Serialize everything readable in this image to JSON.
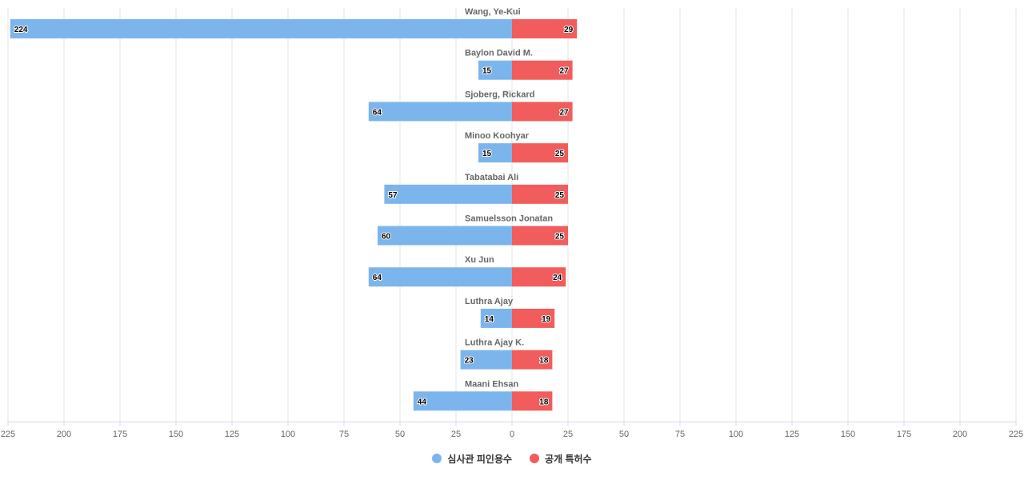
{
  "chart_data": {
    "type": "bar",
    "orientation": "horizontal-diverging",
    "categories": [
      "Wang, Ye-Kui",
      "Baylon David M.",
      "Sjoberg, Rickard",
      "Minoo Koohyar",
      "Tabatabai Ali",
      "Samuelsson Jonatan",
      "Xu Jun",
      "Luthra Ajay",
      "Luthra Ajay K.",
      "Maani Ehsan"
    ],
    "series": [
      {
        "name": "심사관 피인용수",
        "color": "#7cb5ec",
        "direction": "left",
        "values": [
          224,
          15,
          64,
          15,
          57,
          60,
          64,
          14,
          23,
          44
        ]
      },
      {
        "name": "공개 특허수",
        "color": "#f15c5c",
        "direction": "right",
        "values": [
          29,
          27,
          27,
          25,
          25,
          25,
          24,
          19,
          18,
          18
        ]
      }
    ],
    "xlim": [
      -225,
      225
    ],
    "ticks": [
      225,
      200,
      175,
      150,
      125,
      100,
      75,
      50,
      25,
      0,
      25,
      50,
      75,
      100,
      125,
      150,
      175,
      200,
      225
    ],
    "grid": true,
    "legend_position": "bottom-center",
    "title": "",
    "xlabel": "",
    "ylabel": ""
  },
  "legend": {
    "items": [
      {
        "label": "심사관 피인용수",
        "color": "#7cb5ec"
      },
      {
        "label": "공개 특허수",
        "color": "#f15c5c"
      }
    ]
  }
}
